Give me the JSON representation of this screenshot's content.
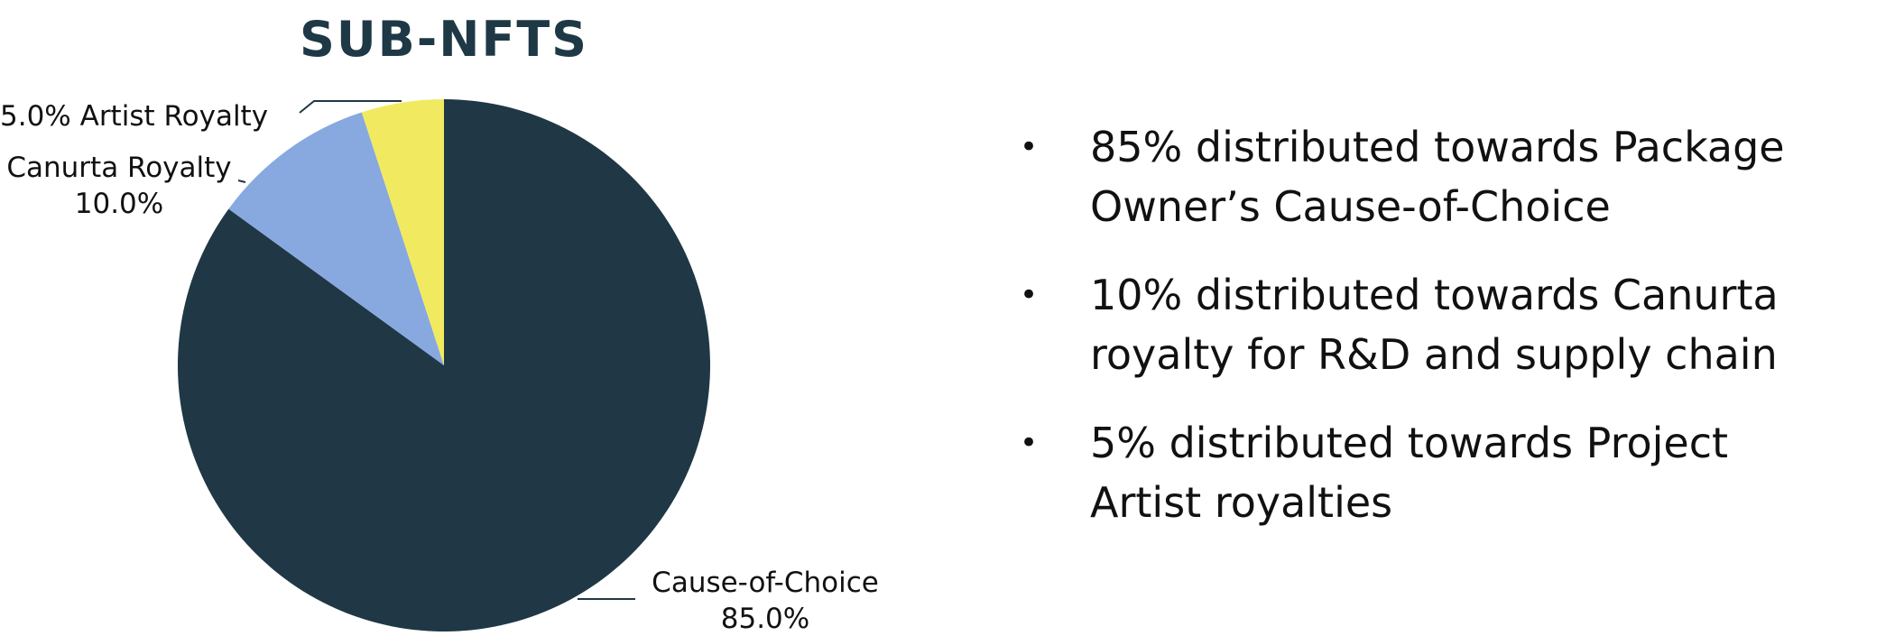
{
  "colors": {
    "title": "#1f3846",
    "leader": "#1f3846"
  },
  "chart_data": {
    "type": "pie",
    "title": "SUB-NFTS",
    "slices": [
      {
        "name": "Cause-of-Choice",
        "value": 85.0,
        "display": "85.0%",
        "color": "#203745"
      },
      {
        "name": "Canurta Royalty",
        "value": 10.0,
        "display": "10.0%",
        "color": "#88a8e0"
      },
      {
        "name": "Artist Royalty",
        "value": 5.0,
        "display": "5.0%",
        "color": "#f1ea60"
      }
    ],
    "labels": {
      "artist": "5.0% Artist Royalty",
      "canurta_name": "Canurta Royalty",
      "canurta_value": "10.0%",
      "cause_name": "Cause-of-Choice",
      "cause_value": "85.0%"
    }
  },
  "bullets": [
    {
      "lines": [
        "85% distributed towards Package",
        "Owner’s Cause-of-Choice"
      ]
    },
    {
      "lines": [
        "10% distributed towards Canurta",
        "royalty for R&D and supply chain"
      ]
    },
    {
      "lines": [
        "5% distributed towards Project",
        "Artist royalties"
      ]
    }
  ],
  "bullet_symbol": "•"
}
